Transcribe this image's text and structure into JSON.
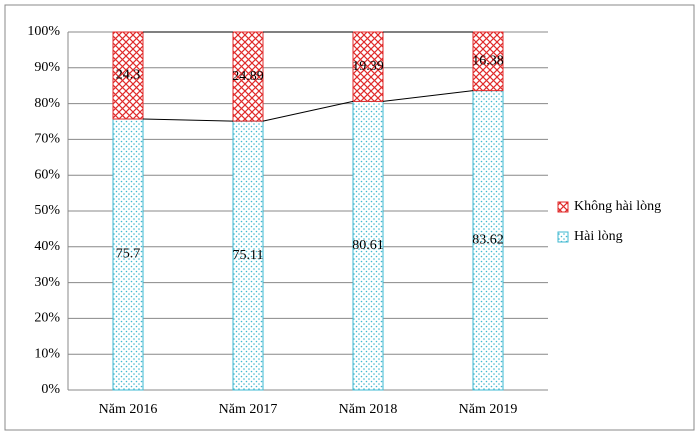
{
  "chart_data": {
    "type": "stacked_bar",
    "categories": [
      "Năm 2016",
      "Năm 2017",
      "Năm 2018",
      "Năm 2019"
    ],
    "series": [
      {
        "name": "Hài lòng",
        "color": "#3fb8d0",
        "values": [
          75.7,
          75.11,
          80.61,
          83.62
        ]
      },
      {
        "name": "Không hài lòng",
        "color": "#e02a2a",
        "values": [
          24.3,
          24.89,
          19.39,
          16.38
        ]
      }
    ],
    "ylim": [
      0,
      100
    ],
    "yticks": [
      {
        "value": 0,
        "label": "0%"
      },
      {
        "value": 10,
        "label": "10%"
      },
      {
        "value": 20,
        "label": "20%"
      },
      {
        "value": 30,
        "label": "30%"
      },
      {
        "value": 40,
        "label": "40%"
      },
      {
        "value": 50,
        "label": "50%"
      },
      {
        "value": 60,
        "label": "60%"
      },
      {
        "value": 70,
        "label": "70%"
      },
      {
        "value": 80,
        "label": "80%"
      },
      {
        "value": 90,
        "label": "90%"
      },
      {
        "value": 100,
        "label": "100%"
      }
    ],
    "grid": true,
    "legend": "right"
  }
}
